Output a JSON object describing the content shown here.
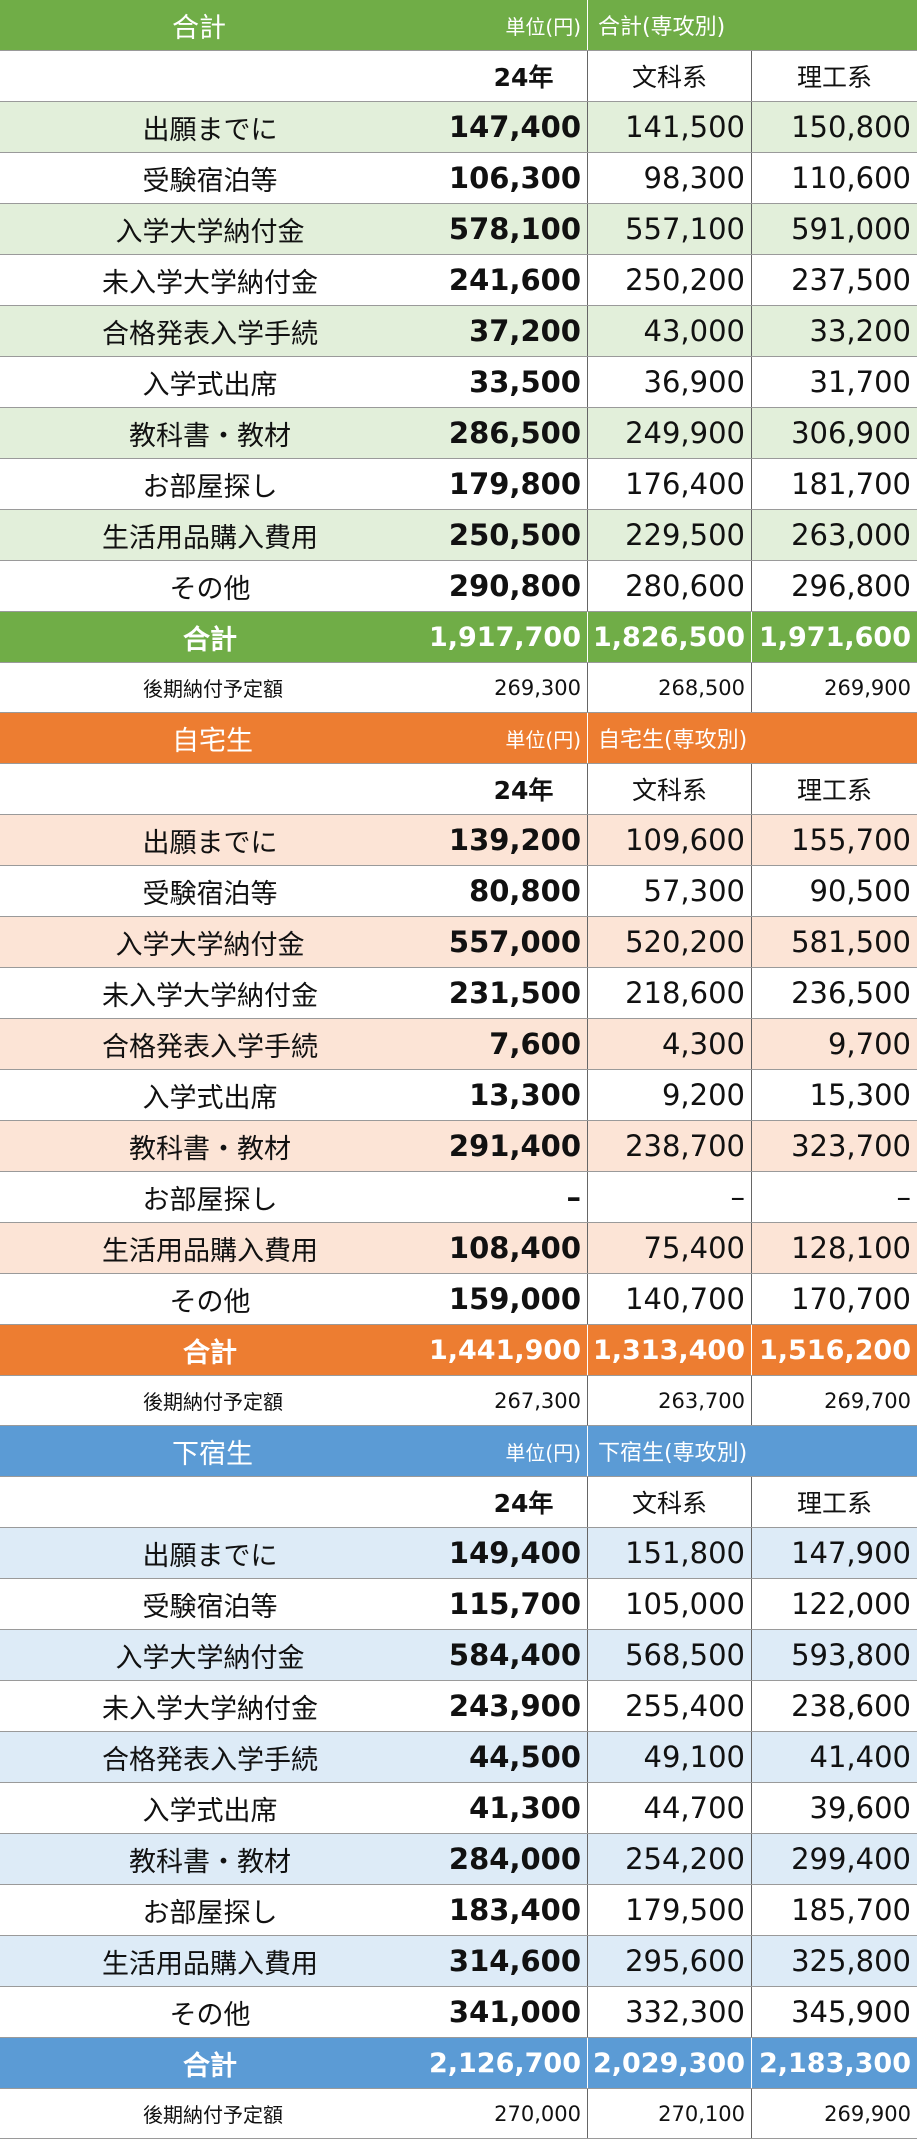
{
  "row_labels": [
    "出願までに",
    "受験宿泊等",
    "入学大学納付金",
    "未入学大学納付金",
    "合格発表入学手続",
    "入学式出席",
    "教科書・教材",
    "お部屋探し",
    "生活用品購入費用",
    "その他"
  ],
  "total_label": "合計",
  "late_label": "後期納付予定額",
  "col_headers": {
    "year": "24年",
    "bunka": "文科系",
    "rikou": "理工系"
  },
  "sections": [
    {
      "title": "合計",
      "unit": "単位(円)",
      "major_title": "合計(専攻別)",
      "colors": {
        "header": "#70ad47",
        "stripe": "#e2efda"
      },
      "rows": [
        [
          "147,400",
          "141,500",
          "150,800"
        ],
        [
          "106,300",
          "98,300",
          "110,600"
        ],
        [
          "578,100",
          "557,100",
          "591,000"
        ],
        [
          "241,600",
          "250,200",
          "237,500"
        ],
        [
          "37,200",
          "43,000",
          "33,200"
        ],
        [
          "33,500",
          "36,900",
          "31,700"
        ],
        [
          "286,500",
          "249,900",
          "306,900"
        ],
        [
          "179,800",
          "176,400",
          "181,700"
        ],
        [
          "250,500",
          "229,500",
          "263,000"
        ],
        [
          "290,800",
          "280,600",
          "296,800"
        ]
      ],
      "total": [
        "1,917,700",
        "1,826,500",
        "1,971,600"
      ],
      "late": [
        "269,300",
        "268,500",
        "269,900"
      ]
    },
    {
      "title": "自宅生",
      "unit": "単位(円)",
      "major_title": "自宅生(専攻別)",
      "colors": {
        "header": "#ed7d31",
        "stripe": "#fce4d6"
      },
      "rows": [
        [
          "139,200",
          "109,600",
          "155,700"
        ],
        [
          "80,800",
          "57,300",
          "90,500"
        ],
        [
          "557,000",
          "520,200",
          "581,500"
        ],
        [
          "231,500",
          "218,600",
          "236,500"
        ],
        [
          "7,600",
          "4,300",
          "9,700"
        ],
        [
          "13,300",
          "9,200",
          "15,300"
        ],
        [
          "291,400",
          "238,700",
          "323,700"
        ],
        [
          "–",
          "–",
          "–"
        ],
        [
          "108,400",
          "75,400",
          "128,100"
        ],
        [
          "159,000",
          "140,700",
          "170,700"
        ]
      ],
      "total": [
        "1,441,900",
        "1,313,400",
        "1,516,200"
      ],
      "late": [
        "267,300",
        "263,700",
        "269,700"
      ]
    },
    {
      "title": "下宿生",
      "unit": "単位(円)",
      "major_title": "下宿生(専攻別)",
      "colors": {
        "header": "#5b9bd5",
        "stripe": "#ddebf7"
      },
      "rows": [
        [
          "149,400",
          "151,800",
          "147,900"
        ],
        [
          "115,700",
          "105,000",
          "122,000"
        ],
        [
          "584,400",
          "568,500",
          "593,800"
        ],
        [
          "243,900",
          "255,400",
          "238,600"
        ],
        [
          "44,500",
          "49,100",
          "41,400"
        ],
        [
          "41,300",
          "44,700",
          "39,600"
        ],
        [
          "284,000",
          "254,200",
          "299,400"
        ],
        [
          "183,400",
          "179,500",
          "185,700"
        ],
        [
          "314,600",
          "295,600",
          "325,800"
        ],
        [
          "341,000",
          "332,300",
          "345,900"
        ]
      ],
      "total": [
        "2,126,700",
        "2,029,300",
        "2,183,300"
      ],
      "late": [
        "270,000",
        "270,100",
        "269,900"
      ]
    }
  ]
}
